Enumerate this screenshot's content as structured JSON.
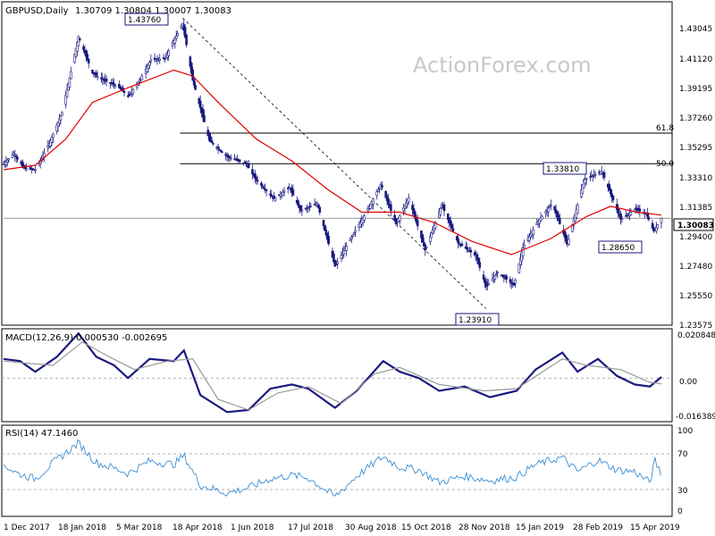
{
  "header": {
    "symbol": "GBPUSD,Daily",
    "ohlc": "1.30709 1.30804 1.30007 1.30083"
  },
  "watermark": "ActionForex.com",
  "price_axis_ticks": [
    "1.43045",
    "1.41120",
    "1.39195",
    "1.37260",
    "1.35295",
    "1.33310",
    "1.31385",
    "1.29400",
    "1.27480",
    "1.25550",
    "1.23575"
  ],
  "current_price_label": "1.30083",
  "annotations": [
    "1.43760",
    "1.33810",
    "1.28650",
    "1.23910"
  ],
  "fib_labels": [
    "61.8",
    "50.0"
  ],
  "macd": {
    "label": "MACD(12,26,9) 0.000530 -0.002695",
    "ticks": [
      "0.020848",
      "0.00",
      "-0.016389"
    ]
  },
  "rsi": {
    "label": "RSI(14) 47.1460",
    "ticks": [
      "100",
      "70",
      "30",
      "0"
    ]
  },
  "x_labels": [
    "1 Dec 2017",
    "18 Jan 2018",
    "5 Mar 2018",
    "18 Apr 2018",
    "1 Jun 2018",
    "17 Jul 2018",
    "30 Aug 2018",
    "15 Oct 2018",
    "28 Nov 2018",
    "15 Jan 2019",
    "28 Feb 2019",
    "15 Apr 2019"
  ],
  "colors": {
    "ma": "#e00000",
    "macd": "#1a1a80",
    "signal": "#9a9a9a",
    "rsi": "#3b8fd4",
    "axis": "#000000",
    "level": "#000000"
  },
  "chart_data": [
    {
      "type": "candlestick",
      "title": "GBPUSD,Daily",
      "x_range": [
        "2017-11-27",
        "2019-04-29"
      ],
      "ylim": [
        1.2278,
        1.4487
      ],
      "anchors": [
        {
          "d": "2017-11-27",
          "v": 1.338
        },
        {
          "d": "2017-12-05",
          "v": 1.345
        },
        {
          "d": "2017-12-13",
          "v": 1.335
        },
        {
          "d": "2017-12-22",
          "v": 1.334
        },
        {
          "d": "2018-01-02",
          "v": 1.352
        },
        {
          "d": "2018-01-12",
          "v": 1.373
        },
        {
          "d": "2018-01-25",
          "v": 1.425
        },
        {
          "d": "2018-02-05",
          "v": 1.4
        },
        {
          "d": "2018-02-14",
          "v": 1.395
        },
        {
          "d": "2018-02-25",
          "v": 1.391
        },
        {
          "d": "2018-03-05",
          "v": 1.384
        },
        {
          "d": "2018-03-14",
          "v": 1.395
        },
        {
          "d": "2018-03-23",
          "v": 1.409
        },
        {
          "d": "2018-04-03",
          "v": 1.41
        },
        {
          "d": "2018-04-17",
          "v": 1.434
        },
        {
          "d": "2018-04-25",
          "v": 1.395
        },
        {
          "d": "2018-05-08",
          "v": 1.354
        },
        {
          "d": "2018-05-22",
          "v": 1.343
        },
        {
          "d": "2018-06-06",
          "v": 1.338
        },
        {
          "d": "2018-06-14",
          "v": 1.327
        },
        {
          "d": "2018-06-28",
          "v": 1.314
        },
        {
          "d": "2018-07-10",
          "v": 1.322
        },
        {
          "d": "2018-07-19",
          "v": 1.306
        },
        {
          "d": "2018-08-01",
          "v": 1.311
        },
        {
          "d": "2018-08-15",
          "v": 1.268
        },
        {
          "d": "2018-08-28",
          "v": 1.288
        },
        {
          "d": "2018-09-08",
          "v": 1.304
        },
        {
          "d": "2018-09-20",
          "v": 1.324
        },
        {
          "d": "2018-10-02",
          "v": 1.297
        },
        {
          "d": "2018-10-12",
          "v": 1.315
        },
        {
          "d": "2018-10-25",
          "v": 1.279
        },
        {
          "d": "2018-11-07",
          "v": 1.31
        },
        {
          "d": "2018-11-20",
          "v": 1.284
        },
        {
          "d": "2018-12-04",
          "v": 1.275
        },
        {
          "d": "2018-12-12",
          "v": 1.254
        },
        {
          "d": "2018-12-21",
          "v": 1.264
        },
        {
          "d": "2019-01-03",
          "v": 1.255
        },
        {
          "d": "2019-01-10",
          "v": 1.281
        },
        {
          "d": "2019-01-22",
          "v": 1.299
        },
        {
          "d": "2019-02-02",
          "v": 1.311
        },
        {
          "d": "2019-02-14",
          "v": 1.283
        },
        {
          "d": "2019-02-27",
          "v": 1.327
        },
        {
          "d": "2019-03-13",
          "v": 1.333
        },
        {
          "d": "2019-03-28",
          "v": 1.3
        },
        {
          "d": "2019-04-08",
          "v": 1.307
        },
        {
          "d": "2019-04-17",
          "v": 1.304
        },
        {
          "d": "2019-04-23",
          "v": 1.292
        },
        {
          "d": "2019-04-29",
          "v": 1.301
        }
      ],
      "ma": [
        {
          "d": "2017-11-27",
          "v": 1.334
        },
        {
          "d": "2017-12-22",
          "v": 1.337
        },
        {
          "d": "2018-01-15",
          "v": 1.355
        },
        {
          "d": "2018-02-05",
          "v": 1.38
        },
        {
          "d": "2018-03-05",
          "v": 1.39
        },
        {
          "d": "2018-04-10",
          "v": 1.402
        },
        {
          "d": "2018-04-25",
          "v": 1.398
        },
        {
          "d": "2018-05-15",
          "v": 1.38
        },
        {
          "d": "2018-06-14",
          "v": 1.355
        },
        {
          "d": "2018-07-12",
          "v": 1.34
        },
        {
          "d": "2018-08-10",
          "v": 1.32
        },
        {
          "d": "2018-09-05",
          "v": 1.305
        },
        {
          "d": "2018-10-05",
          "v": 1.305
        },
        {
          "d": "2018-11-01",
          "v": 1.298
        },
        {
          "d": "2018-12-01",
          "v": 1.285
        },
        {
          "d": "2019-01-01",
          "v": 1.276
        },
        {
          "d": "2019-02-01",
          "v": 1.287
        },
        {
          "d": "2019-03-01",
          "v": 1.302
        },
        {
          "d": "2019-03-20",
          "v": 1.309
        },
        {
          "d": "2019-04-10",
          "v": 1.305
        },
        {
          "d": "2019-04-29",
          "v": 1.303
        }
      ],
      "horizontal_levels": [
        {
          "label": "61.8",
          "y": 1.359,
          "from": "2018-04-15"
        },
        {
          "label": "50.0",
          "y": 1.3381,
          "from": "2018-04-15"
        },
        {
          "label": "",
          "y": 1.3008,
          "from": "2017-11-27"
        }
      ],
      "trend_line": {
        "from": {
          "d": "2018-04-17",
          "v": 1.4376
        },
        "to": {
          "d": "2018-12-12",
          "v": 1.2391
        }
      },
      "price_labels": [
        {
          "text": "1.43760",
          "d": "2018-03-18",
          "v": 1.4391
        },
        {
          "text": "1.33810",
          "d": "2019-02-10",
          "v": 1.3381
        },
        {
          "text": "1.28650",
          "d": "2019-03-23",
          "v": 1.2865
        },
        {
          "text": "1.23910",
          "d": "2018-11-22",
          "v": 1.238
        }
      ]
    },
    {
      "type": "line",
      "title": "MACD(12,26,9) 0.000530 -0.002695",
      "ylim": [
        -0.0205,
        0.0232
      ],
      "series": [
        {
          "style": "macd",
          "points": [
            {
              "d": "2017-11-27",
              "v": 0.009
            },
            {
              "d": "2017-12-10",
              "v": 0.008
            },
            {
              "d": "2017-12-22",
              "v": 0.003
            },
            {
              "d": "2018-01-08",
              "v": 0.01
            },
            {
              "d": "2018-01-25",
              "v": 0.021
            },
            {
              "d": "2018-02-08",
              "v": 0.01
            },
            {
              "d": "2018-02-22",
              "v": 0.006
            },
            {
              "d": "2018-03-05",
              "v": 0.0
            },
            {
              "d": "2018-03-22",
              "v": 0.009
            },
            {
              "d": "2018-04-10",
              "v": 0.008
            },
            {
              "d": "2018-04-18",
              "v": 0.013
            },
            {
              "d": "2018-05-01",
              "v": -0.008
            },
            {
              "d": "2018-05-22",
              "v": -0.016
            },
            {
              "d": "2018-06-08",
              "v": -0.015
            },
            {
              "d": "2018-06-25",
              "v": -0.005
            },
            {
              "d": "2018-07-12",
              "v": -0.003
            },
            {
              "d": "2018-07-25",
              "v": -0.005
            },
            {
              "d": "2018-08-15",
              "v": -0.014
            },
            {
              "d": "2018-09-01",
              "v": -0.006
            },
            {
              "d": "2018-09-22",
              "v": 0.008
            },
            {
              "d": "2018-10-05",
              "v": 0.003
            },
            {
              "d": "2018-10-20",
              "v": 0.0
            },
            {
              "d": "2018-11-05",
              "v": -0.006
            },
            {
              "d": "2018-11-25",
              "v": -0.004
            },
            {
              "d": "2018-12-15",
              "v": -0.009
            },
            {
              "d": "2019-01-05",
              "v": -0.006
            },
            {
              "d": "2019-01-20",
              "v": 0.004
            },
            {
              "d": "2019-02-10",
              "v": 0.012
            },
            {
              "d": "2019-02-22",
              "v": 0.003
            },
            {
              "d": "2019-03-10",
              "v": 0.009
            },
            {
              "d": "2019-03-25",
              "v": 0.001
            },
            {
              "d": "2019-04-08",
              "v": -0.003
            },
            {
              "d": "2019-04-20",
              "v": -0.004
            },
            {
              "d": "2019-04-29",
              "v": 0.0005
            }
          ]
        },
        {
          "style": "signal",
          "points": [
            {
              "d": "2017-11-27",
              "v": 0.008
            },
            {
              "d": "2017-12-15",
              "v": 0.007
            },
            {
              "d": "2018-01-05",
              "v": 0.006
            },
            {
              "d": "2018-01-28",
              "v": 0.017
            },
            {
              "d": "2018-02-15",
              "v": 0.011
            },
            {
              "d": "2018-03-10",
              "v": 0.004
            },
            {
              "d": "2018-04-05",
              "v": 0.008
            },
            {
              "d": "2018-04-25",
              "v": 0.009
            },
            {
              "d": "2018-05-15",
              "v": -0.01
            },
            {
              "d": "2018-06-08",
              "v": -0.015
            },
            {
              "d": "2018-07-01",
              "v": -0.007
            },
            {
              "d": "2018-07-25",
              "v": -0.004
            },
            {
              "d": "2018-08-20",
              "v": -0.012
            },
            {
              "d": "2018-09-15",
              "v": 0.002
            },
            {
              "d": "2018-10-05",
              "v": 0.005
            },
            {
              "d": "2018-11-05",
              "v": -0.003
            },
            {
              "d": "2018-12-10",
              "v": -0.006
            },
            {
              "d": "2019-01-05",
              "v": -0.005
            },
            {
              "d": "2019-02-10",
              "v": 0.009
            },
            {
              "d": "2019-03-01",
              "v": 0.006
            },
            {
              "d": "2019-03-28",
              "v": 0.004
            },
            {
              "d": "2019-04-20",
              "v": -0.002
            },
            {
              "d": "2019-04-29",
              "v": -0.0027
            }
          ]
        }
      ]
    },
    {
      "type": "line",
      "title": "RSI(14) 47.1460",
      "ylim": [
        0,
        100
      ],
      "levels": [
        70,
        30
      ],
      "series": [
        {
          "style": "rsi",
          "points": [
            {
              "d": "2017-11-27",
              "v": 58
            },
            {
              "d": "2017-12-08",
              "v": 48
            },
            {
              "d": "2017-12-22",
              "v": 42
            },
            {
              "d": "2018-01-05",
              "v": 60
            },
            {
              "d": "2018-01-25",
              "v": 82
            },
            {
              "d": "2018-02-08",
              "v": 60
            },
            {
              "d": "2018-02-22",
              "v": 54
            },
            {
              "d": "2018-03-05",
              "v": 48
            },
            {
              "d": "2018-03-22",
              "v": 62
            },
            {
              "d": "2018-04-10",
              "v": 58
            },
            {
              "d": "2018-04-18",
              "v": 68
            },
            {
              "d": "2018-05-01",
              "v": 35
            },
            {
              "d": "2018-05-22",
              "v": 26
            },
            {
              "d": "2018-06-08",
              "v": 32
            },
            {
              "d": "2018-06-25",
              "v": 42
            },
            {
              "d": "2018-07-12",
              "v": 46
            },
            {
              "d": "2018-07-25",
              "v": 43
            },
            {
              "d": "2018-08-15",
              "v": 22
            },
            {
              "d": "2018-09-01",
              "v": 45
            },
            {
              "d": "2018-09-22",
              "v": 67
            },
            {
              "d": "2018-10-05",
              "v": 55
            },
            {
              "d": "2018-10-20",
              "v": 52
            },
            {
              "d": "2018-11-05",
              "v": 38
            },
            {
              "d": "2018-11-25",
              "v": 45
            },
            {
              "d": "2018-12-15",
              "v": 40
            },
            {
              "d": "2019-01-05",
              "v": 44
            },
            {
              "d": "2019-01-20",
              "v": 58
            },
            {
              "d": "2019-02-10",
              "v": 66
            },
            {
              "d": "2019-02-22",
              "v": 50
            },
            {
              "d": "2019-03-10",
              "v": 63
            },
            {
              "d": "2019-03-25",
              "v": 52
            },
            {
              "d": "2019-04-08",
              "v": 50
            },
            {
              "d": "2019-04-20",
              "v": 38
            },
            {
              "d": "2019-04-24",
              "v": 62
            },
            {
              "d": "2019-04-29",
              "v": 47
            }
          ]
        }
      ]
    }
  ]
}
